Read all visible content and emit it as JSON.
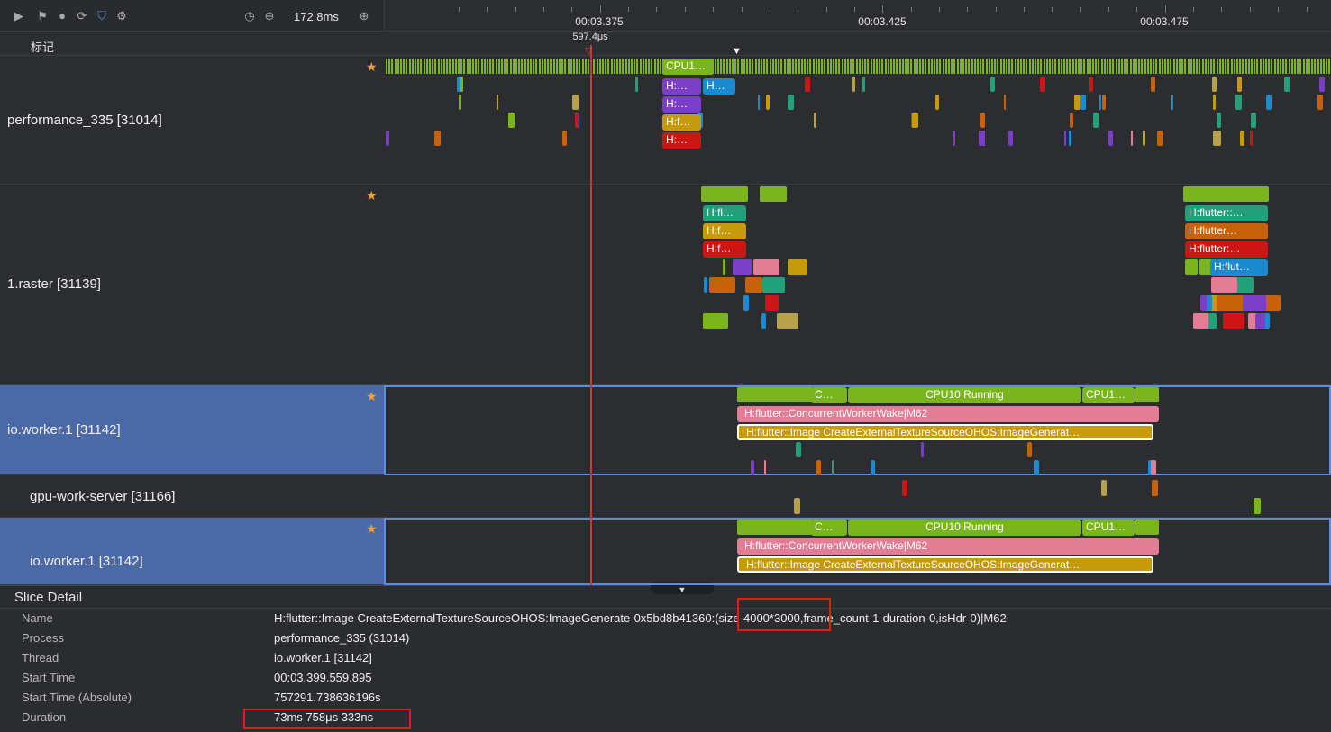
{
  "toolbar": {
    "duration": "172.8ms"
  },
  "ruler": {
    "ticks": [
      "00:03.375",
      "00:03.425",
      "00:03.475"
    ],
    "cursor_label": "597.4μs",
    "flag_label": "标记"
  },
  "tracks": [
    {
      "name": "performance_335 [31014]",
      "slices": [
        "CPU1…",
        "H:…",
        "H…",
        "H:…",
        "H:f…",
        "H:…"
      ]
    },
    {
      "name": "1.raster [31139]",
      "slices": [
        "H:fl…",
        "H:f…",
        "H:f…",
        "H:flutter::…",
        "H:flutter…",
        "H:flutter:…",
        "H:flut…"
      ]
    },
    {
      "name": "io.worker.1 [31142]",
      "slices": [
        "C…",
        "CPU10 Running",
        "CPU1…",
        "H:flutter::ConcurrentWorkerWake|M62",
        "H:flutter::Image CreateExternalTextureSourceOHOS:ImageGenerat…"
      ]
    },
    {
      "name": "gpu-work-server [31166]"
    },
    {
      "name": "io.worker.1 [31142]",
      "slices": [
        "C…",
        "CPU10 Running",
        "CPU1…",
        "H:flutter::ConcurrentWorkerWake|M62",
        "H:flutter::Image CreateExternalTextureSourceOHOS:ImageGenerat…"
      ]
    }
  ],
  "slice_detail": {
    "title": "Slice Detail",
    "fields": [
      {
        "label": "Name",
        "value": "H:flutter::Image CreateExternalTextureSourceOHOS:ImageGenerate-0x5bd8b41360:(size-4000*3000,frame_count-1-duration-0,isHdr-0)|M62"
      },
      {
        "label": "Process",
        "value": "performance_335 (31014)"
      },
      {
        "label": "Thread",
        "value": "io.worker.1 [31142]"
      },
      {
        "label": "Start Time",
        "value": "00:03.399.559.895"
      },
      {
        "label": "Start Time (Absolute)",
        "value": "757291.738636196s"
      },
      {
        "label": "Duration",
        "value": "73ms 758μs 333ns"
      }
    ]
  }
}
